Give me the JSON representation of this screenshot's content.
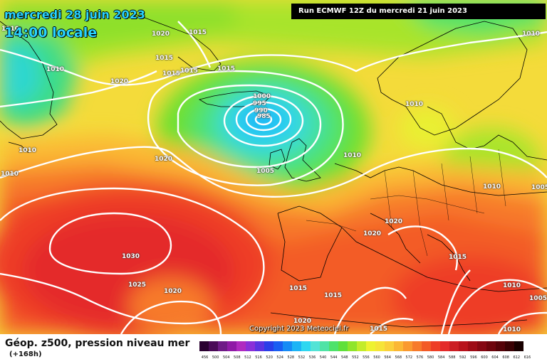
{
  "header": {
    "date": "mercredi 28 juin 2023",
    "time": "14:00 locale",
    "run": "Run ECMWF 12Z du mercredi 21 juin 2023"
  },
  "footer": {
    "caption": "Géop. z500, pression niveau mer",
    "sub": "(+168h)",
    "copyright": "Copyright 2023 Meteociel.fr"
  },
  "isobar_labels": [
    "1010",
    "1020",
    "1015",
    "1015",
    "1015",
    "1015",
    "1010",
    "1020",
    "1015",
    "1000",
    "995",
    "990",
    "985",
    "1010",
    "1010",
    "1010",
    "1020",
    "1010",
    "1005",
    "1010",
    "1020",
    "1020",
    "1015",
    "1005",
    "1030",
    "1025",
    "1020",
    "1015",
    "1015",
    "1020",
    "1015",
    "1010",
    "1005",
    "1010",
    "1010"
  ],
  "scale": {
    "colors": [
      "#2a0030",
      "#4a0a57",
      "#6e1a86",
      "#8f1aa6",
      "#b02ac0",
      "#8a2fd8",
      "#5b33e0",
      "#2a3ee8",
      "#1a5ef2",
      "#168bf5",
      "#1cb4f5",
      "#2ed7f0",
      "#52e3d6",
      "#4fe3a6",
      "#4de26b",
      "#5fe03a",
      "#8fe52a",
      "#c3ec2a",
      "#eef230",
      "#f6e437",
      "#fbd03a",
      "#fbb734",
      "#fa992f",
      "#f77a2b",
      "#f35b27",
      "#ee3e26",
      "#e42a2a",
      "#cc1e24",
      "#b8121c",
      "#9e0b16",
      "#860712",
      "#6e040c",
      "#550208",
      "#3a0104",
      "#180000"
    ],
    "labels": [
      "456",
      "500",
      "504",
      "508",
      "512",
      "516",
      "520",
      "524",
      "528",
      "532",
      "536",
      "540",
      "544",
      "548",
      "552",
      "556",
      "560",
      "564",
      "568",
      "572",
      "576",
      "580",
      "584",
      "588",
      "592",
      "596",
      "600",
      "604",
      "608",
      "612",
      "616"
    ]
  }
}
